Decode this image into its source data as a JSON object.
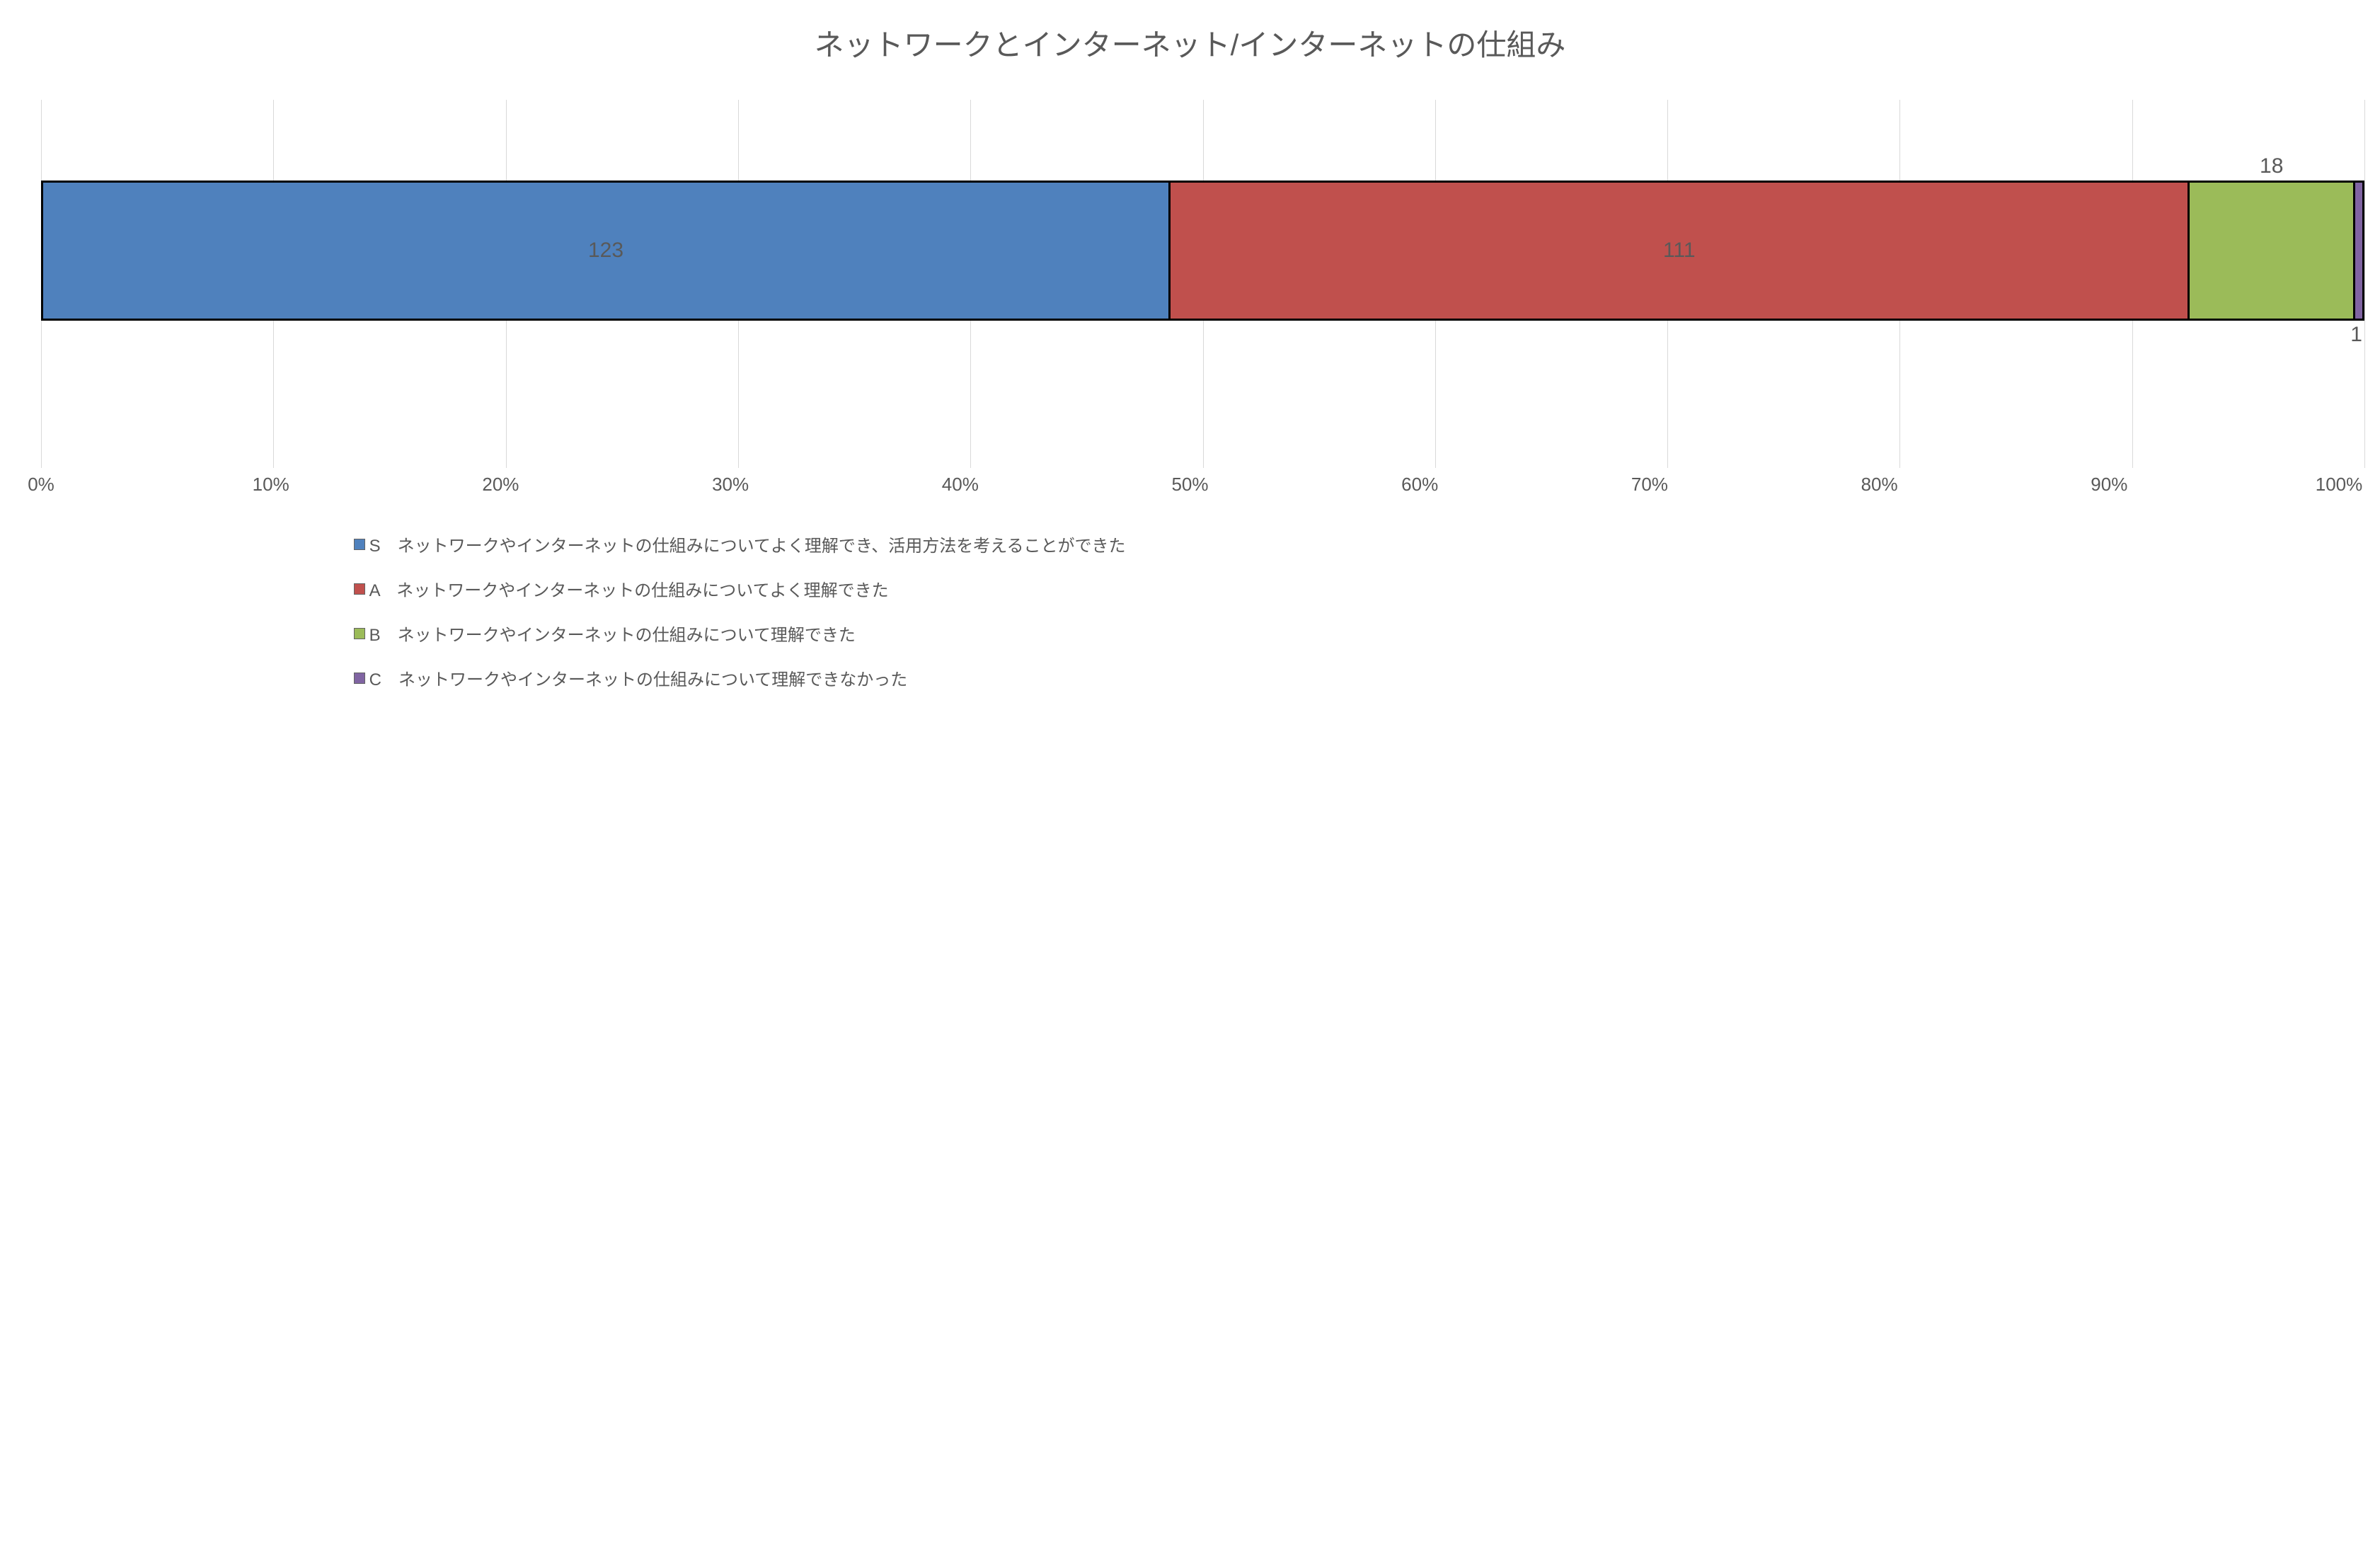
{
  "chart": {
    "type": "stacked-bar-100",
    "title": "ネットワークとインターネット/インターネットの仕組み",
    "title_fontsize": 42,
    "title_color": "#595959",
    "background_color": "#ffffff",
    "axis_label_fontsize": 26,
    "axis_label_color": "#595959",
    "data_label_fontsize": 30,
    "data_label_color": "#595959",
    "gridline_color": "#d9d9d9",
    "gridline_width": 1,
    "bar_border_color": "#000000",
    "bar_border_width": 3,
    "bar_top_pct": 22,
    "bar_height_pct": 38,
    "x_axis": {
      "min": 0,
      "max": 100,
      "tick_step": 10,
      "tick_suffix": "%",
      "ticks": [
        "0%",
        "10%",
        "20%",
        "30%",
        "40%",
        "50%",
        "60%",
        "70%",
        "80%",
        "90%",
        "100%"
      ]
    },
    "segments": [
      {
        "key": "S",
        "value": 123,
        "color": "#4f81bd",
        "label": "123",
        "label_pos": "center"
      },
      {
        "key": "A",
        "value": 111,
        "color": "#c0504d",
        "label": "111",
        "label_pos": "center"
      },
      {
        "key": "B",
        "value": 18,
        "color": "#9bbb59",
        "label": "18",
        "label_pos": "above-center"
      },
      {
        "key": "C",
        "value": 1,
        "color": "#8064a2",
        "label": "1",
        "label_pos": "below-right"
      }
    ],
    "legend": {
      "fontsize": 24,
      "color": "#595959",
      "marker_size": 16,
      "marker_border_color": "#636363",
      "items": [
        {
          "key": "S",
          "color": "#4f81bd",
          "text": "S　ネットワークやインターネットの仕組みについてよく理解でき、活用方法を考えることができた"
        },
        {
          "key": "A",
          "color": "#c0504d",
          "text": "A　ネットワークやインターネットの仕組みについてよく理解できた"
        },
        {
          "key": "B",
          "color": "#9bbb59",
          "text": "B　ネットワークやインターネットの仕組みについて理解できた"
        },
        {
          "key": "C",
          "color": "#8064a2",
          "text": "C　ネットワークやインターネットの仕組みについて理解できなかった"
        }
      ]
    }
  }
}
